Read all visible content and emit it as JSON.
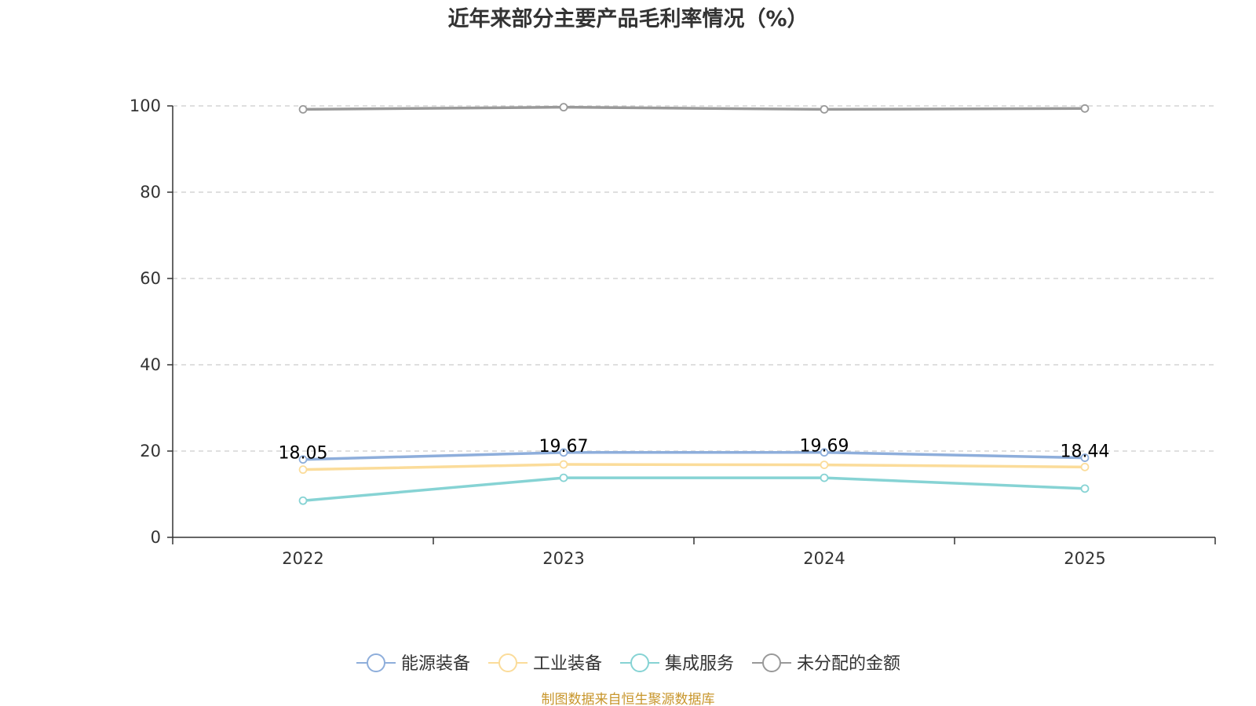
{
  "chart_data": {
    "type": "line",
    "title": "近年来部分主要产品毛利率情况（%）",
    "xlabel": "",
    "ylabel": "",
    "categories": [
      "2022",
      "2023",
      "2024",
      "2025"
    ],
    "ylim": [
      0,
      100
    ],
    "yticks": [
      0,
      20,
      40,
      60,
      80,
      100
    ],
    "grid": true,
    "legend_position": "bottom",
    "series": [
      {
        "name": "能源装备",
        "color": "#8eaedb",
        "values": [
          18.05,
          19.67,
          19.69,
          18.44
        ],
        "data_labels": [
          "18.05",
          "19.67",
          "19.69",
          "18.44"
        ]
      },
      {
        "name": "工业装备",
        "color": "#fbdc9a",
        "values": [
          15.7,
          16.9,
          16.8,
          16.3
        ]
      },
      {
        "name": "集成服务",
        "color": "#86d3d4",
        "values": [
          8.5,
          13.8,
          13.8,
          11.3
        ]
      },
      {
        "name": "未分配的金额",
        "color": "#999999",
        "values": [
          99.2,
          99.7,
          99.2,
          99.4
        ]
      }
    ],
    "source": "制图数据来自恒生聚源数据库",
    "source_color": "#c8962c"
  }
}
